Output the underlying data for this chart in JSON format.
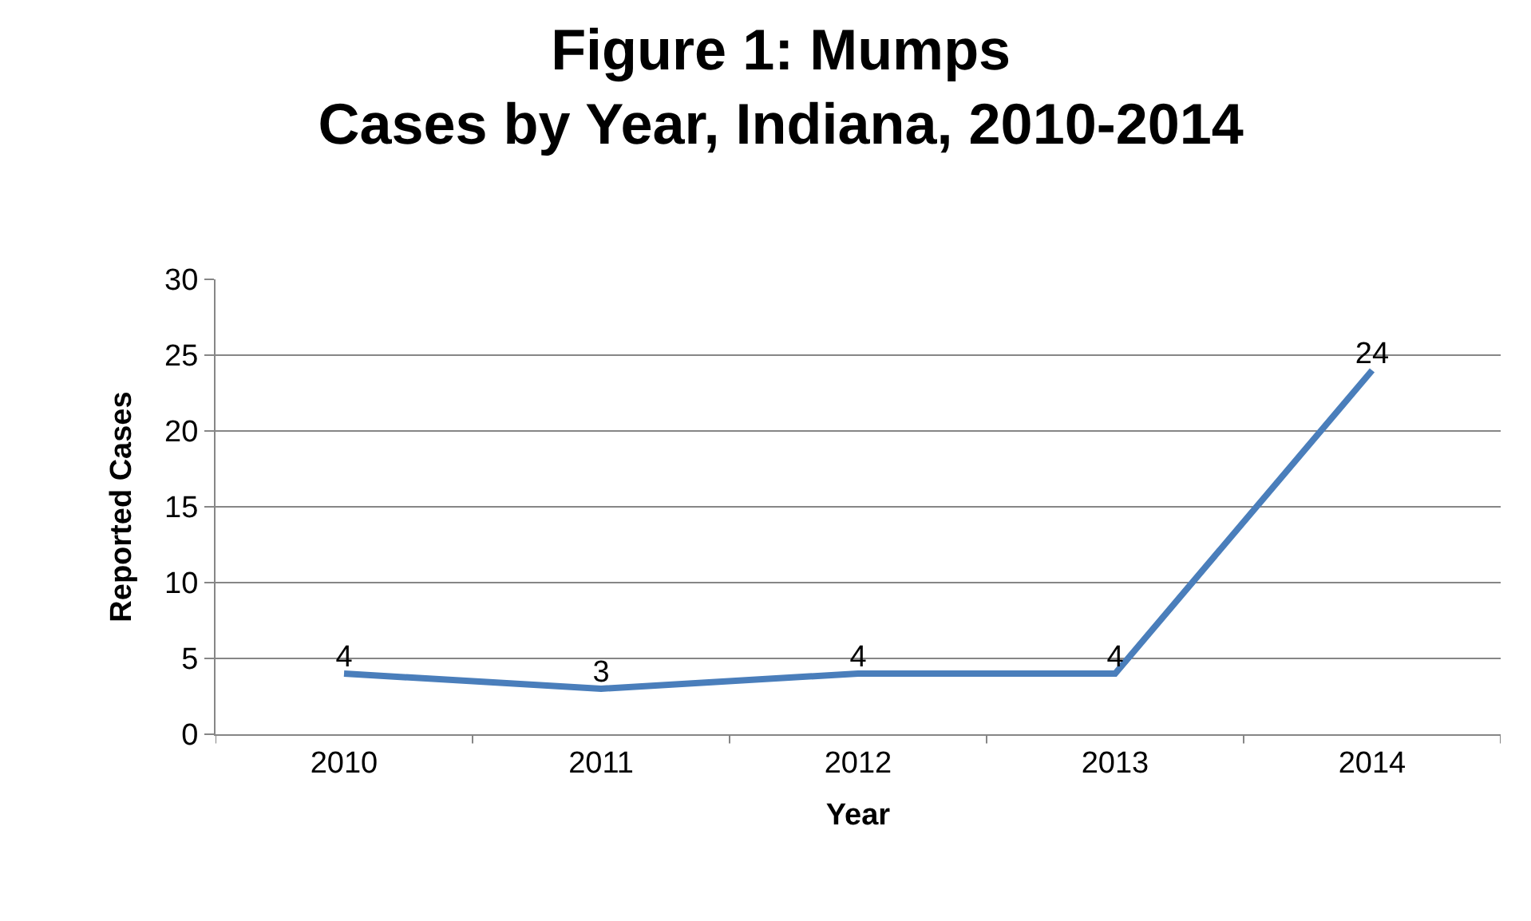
{
  "chart_data": {
    "type": "line",
    "title": "Figure 1: Mumps\nCases by Year, Indiana, 2010-2014",
    "xlabel": "Year",
    "ylabel": "Reported Cases",
    "categories": [
      "2010",
      "2011",
      "2012",
      "2013",
      "2014"
    ],
    "series": [
      {
        "color": "#4a7ebb",
        "values": [
          4,
          3,
          4,
          4,
          24
        ]
      }
    ],
    "ylim": [
      0,
      30
    ],
    "yticks": [
      0,
      5,
      10,
      15,
      20,
      25,
      30
    ],
    "grid": "y",
    "legend": false,
    "marker": "none",
    "line_style": "solid",
    "data_labels": true
  }
}
